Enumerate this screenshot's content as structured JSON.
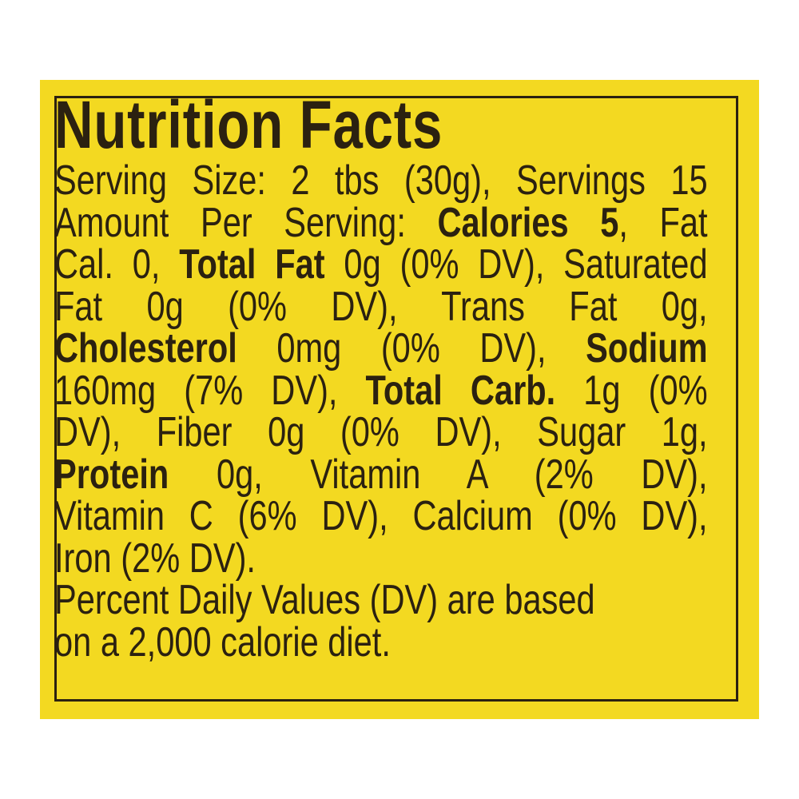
{
  "colors": {
    "background": "#f3d921",
    "text": "#2b2110"
  },
  "label": {
    "title": "Nutrition Facts",
    "lines": [
      {
        "justify": true,
        "segments": [
          {
            "text": "Serving Size: 2 tbs (30g), Servings 15",
            "bold": false
          }
        ]
      },
      {
        "justify": true,
        "segments": [
          {
            "text": "Amount Per Serving: ",
            "bold": false
          },
          {
            "text": "Calories 5",
            "bold": true
          },
          {
            "text": ", Fat",
            "bold": false
          }
        ]
      },
      {
        "justify": true,
        "segments": [
          {
            "text": "Cal. 0, ",
            "bold": false
          },
          {
            "text": "Total Fat",
            "bold": true
          },
          {
            "text": " 0g (0% DV), Saturated",
            "bold": false
          }
        ]
      },
      {
        "justify": true,
        "segments": [
          {
            "text": "Fat 0g (0% DV), Trans Fat 0g,",
            "bold": false
          }
        ]
      },
      {
        "justify": true,
        "segments": [
          {
            "text": "Cholesterol",
            "bold": true
          },
          {
            "text": " 0mg (0% DV), ",
            "bold": false
          },
          {
            "text": "Sodium",
            "bold": true
          }
        ]
      },
      {
        "justify": true,
        "segments": [
          {
            "text": "160mg (7% DV), ",
            "bold": false
          },
          {
            "text": "Total Carb.",
            "bold": true
          },
          {
            "text": " 1g (0%",
            "bold": false
          }
        ]
      },
      {
        "justify": true,
        "segments": [
          {
            "text": "DV), Fiber 0g (0% DV), Sugar 1g,",
            "bold": false
          }
        ]
      },
      {
        "justify": true,
        "segments": [
          {
            "text": "Protein",
            "bold": true
          },
          {
            "text": " 0g, Vitamin A (2% DV),",
            "bold": false
          }
        ]
      },
      {
        "justify": true,
        "segments": [
          {
            "text": "Vitamin C (6% DV), Calcium (0% DV),",
            "bold": false
          }
        ]
      },
      {
        "justify": false,
        "segments": [
          {
            "text": "Iron (2% DV).",
            "bold": false
          }
        ]
      },
      {
        "justify": false,
        "segments": [
          {
            "text": "Percent Daily Values (DV) are based",
            "bold": false
          }
        ]
      },
      {
        "justify": false,
        "segments": [
          {
            "text": "on a 2,000 calorie diet.",
            "bold": false
          }
        ]
      }
    ]
  }
}
